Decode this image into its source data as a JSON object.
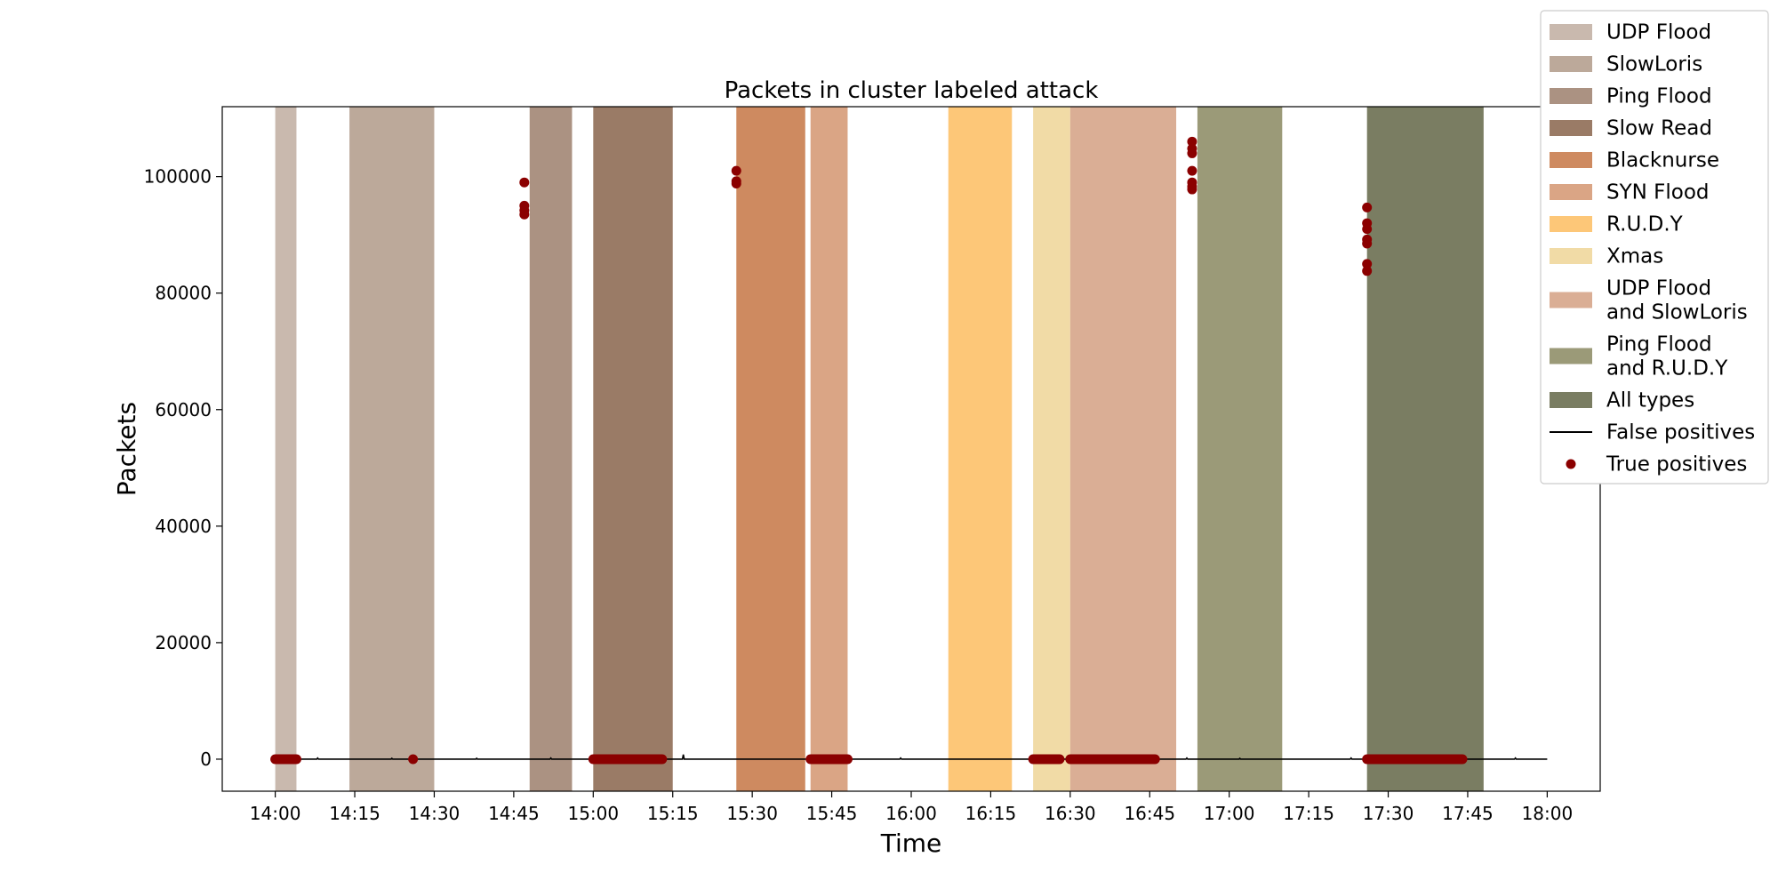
{
  "chart_data": {
    "type": "scatter",
    "title": "Packets in cluster labeled attack",
    "xlabel": "Time",
    "ylabel": "Packets",
    "xlim": [
      "13:50",
      "18:10"
    ],
    "ylim": [
      -5500,
      112000
    ],
    "x_ticks": [
      "14:00",
      "14:15",
      "14:30",
      "14:45",
      "15:00",
      "15:15",
      "15:30",
      "15:45",
      "16:00",
      "16:15",
      "16:30",
      "16:45",
      "17:00",
      "17:15",
      "17:30",
      "17:45",
      "18:00"
    ],
    "y_ticks": [
      0,
      20000,
      40000,
      60000,
      80000,
      100000
    ],
    "grid": false,
    "legend_position": "top-right, outside plot",
    "attack_periods": [
      {
        "label": "UDP Flood",
        "start": "14:00",
        "end": "14:04",
        "color": "#c9b9ae"
      },
      {
        "label": "SlowLoris",
        "start": "14:14",
        "end": "14:30",
        "color": "#bca99a"
      },
      {
        "label": "Ping Flood",
        "start": "14:48",
        "end": "14:56",
        "color": "#ab9282"
      },
      {
        "label": "Slow Read",
        "start": "15:00",
        "end": "15:15",
        "color": "#9a7b66"
      },
      {
        "label": "Blacknurse",
        "start": "15:27",
        "end": "15:40",
        "color": "#ce8a60"
      },
      {
        "label": "SYN Flood",
        "start": "15:41",
        "end": "15:48",
        "color": "#daa585"
      },
      {
        "label": "R.U.D.Y",
        "start": "16:07",
        "end": "16:19",
        "color": "#fdc778"
      },
      {
        "label": "Xmas",
        "start": "16:23",
        "end": "16:30",
        "color": "#f1dba6"
      },
      {
        "label": "UDP Flood and SlowLoris",
        "start": "16:30",
        "end": "16:50",
        "color": "#daae95"
      },
      {
        "label": "Ping Flood and R.U.D.Y",
        "start": "16:54",
        "end": "17:10",
        "color": "#9b9a78"
      },
      {
        "label": "All types",
        "start": "17:26",
        "end": "17:48",
        "color": "#7a7d62"
      }
    ],
    "series": [
      {
        "name": "False positives",
        "kind": "line",
        "color": "#000000",
        "points": [
          [
            "14:08",
            200
          ],
          [
            "14:22",
            150
          ],
          [
            "14:38",
            150
          ],
          [
            "14:52",
            200
          ],
          [
            "15:17",
            800
          ],
          [
            "15:58",
            200
          ],
          [
            "16:28",
            200
          ],
          [
            "16:52",
            200
          ],
          [
            "17:02",
            150
          ],
          [
            "17:23",
            200
          ],
          [
            "17:54",
            200
          ]
        ]
      },
      {
        "name": "True positives",
        "kind": "scatter",
        "color": "#8b0000",
        "points": [
          [
            "14:47",
            99000
          ],
          [
            "14:47",
            95000
          ],
          [
            "14:47",
            94200
          ],
          [
            "14:47",
            93500
          ],
          [
            "15:27",
            101000
          ],
          [
            "15:27",
            99200
          ],
          [
            "15:27",
            98800
          ],
          [
            "16:53",
            106000
          ],
          [
            "16:53",
            104800
          ],
          [
            "16:53",
            104000
          ],
          [
            "16:53",
            101000
          ],
          [
            "16:53",
            99000
          ],
          [
            "16:53",
            98300
          ],
          [
            "16:53",
            97800
          ],
          [
            "17:26",
            94700
          ],
          [
            "17:26",
            92000
          ],
          [
            "17:26",
            91000
          ],
          [
            "17:26",
            89200
          ],
          [
            "17:26",
            88500
          ],
          [
            "17:26",
            85000
          ],
          [
            "17:26",
            83800
          ],
          [
            "14:26",
            0
          ]
        ],
        "baseline_ranges": [
          [
            "14:00",
            "14:04"
          ],
          [
            "15:00",
            "15:13"
          ],
          [
            "15:41",
            "15:48"
          ],
          [
            "16:23",
            "16:28"
          ],
          [
            "16:30",
            "16:46"
          ],
          [
            "17:26",
            "17:44"
          ]
        ]
      }
    ]
  }
}
